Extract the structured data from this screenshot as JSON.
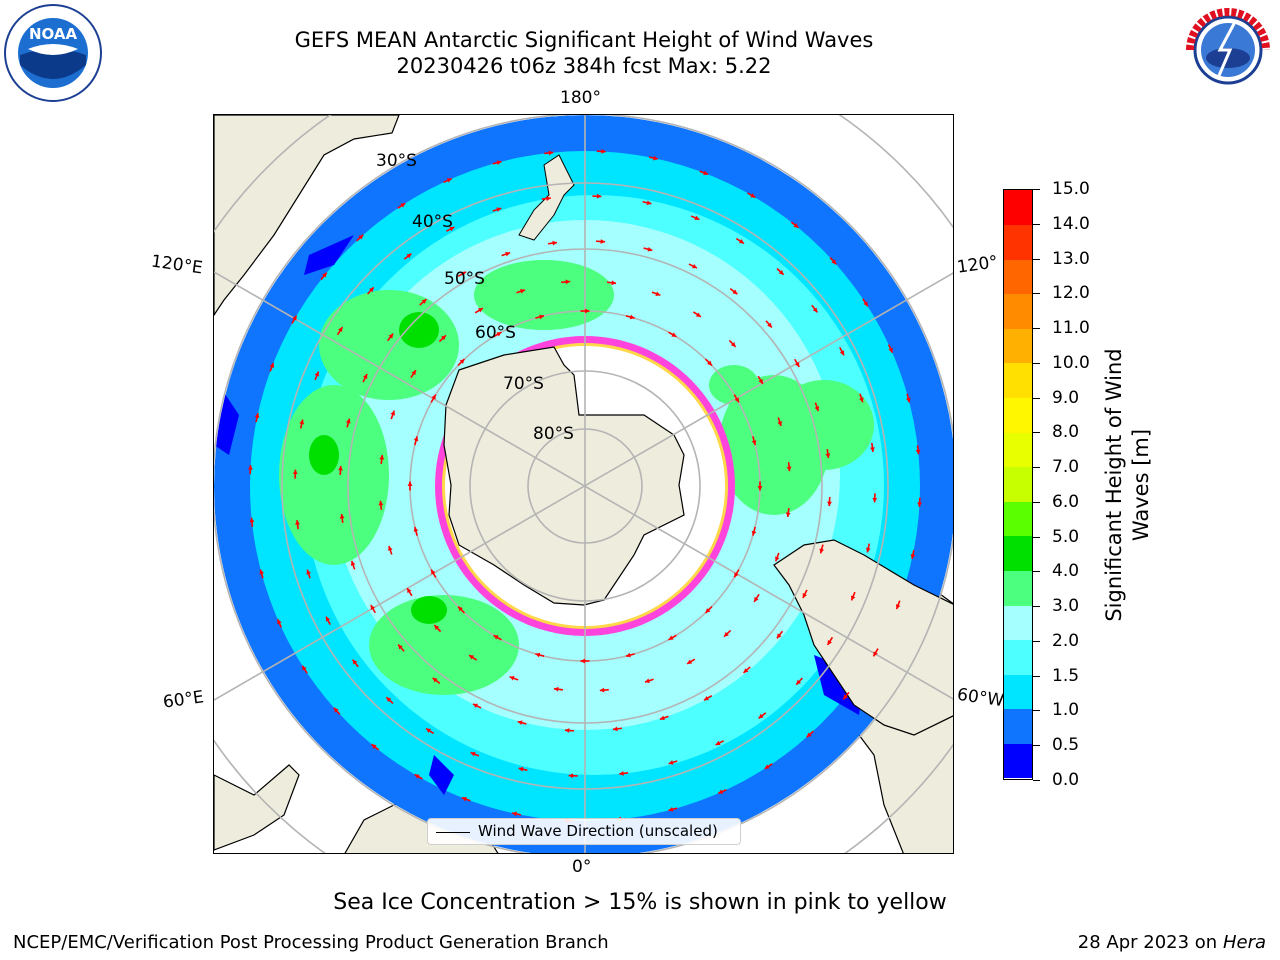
{
  "header": {
    "title_line1": "GEFS MEAN Antarctic Significant Height of Wind Waves",
    "title_line2": "20230426 t06z 384h fcst   Max: 5.22"
  },
  "logos": {
    "left": "NOAA",
    "left_ring_text": "NATIONAL OCEANIC AND ATMOSPHERIC ADMINISTRATION · U.S. DEPARTMENT OF COMMERCE",
    "right_ring_text": "NATIONAL WEATHER SERVICE"
  },
  "map": {
    "projection": "south-polar-stereographic",
    "lon_labels": {
      "top": "180°",
      "left_upper": "120°E",
      "right_upper": "120°",
      "left_lower": "60°E",
      "right_lower": "60°W",
      "bottom": "0°"
    },
    "lat_labels": [
      "30°S",
      "40°S",
      "50°S",
      "60°S",
      "70°S",
      "80°S"
    ],
    "legend": "Wind Wave Direction (unscaled)",
    "colors": {
      "land": "#eeecdc",
      "ice": "#ffffff",
      "grid": "#b4b4b4",
      "arrow": "#ff0000"
    }
  },
  "colorbar": {
    "label": "Significant Height of Wind Waves [m]",
    "ticks": [
      "0.0",
      "0.5",
      "1.0",
      "1.5",
      "2.0",
      "3.0",
      "4.0",
      "5.0",
      "6.0",
      "7.0",
      "8.0",
      "9.0",
      "10.0",
      "11.0",
      "12.0",
      "13.0",
      "14.0",
      "15.0"
    ],
    "colors": [
      "#0000ff",
      "#0f74fe",
      "#00e5ff",
      "#4dffff",
      "#a5ffff",
      "#4cff7e",
      "#00e000",
      "#5aff00",
      "#c8ff00",
      "#e8ff00",
      "#fff700",
      "#ffe000",
      "#ffb000",
      "#ff8c00",
      "#ff6600",
      "#ff3300",
      "#ff0000"
    ]
  },
  "footer": {
    "note": "Sea Ice Concentration > 15% is shown in pink to yellow",
    "left": "NCEP/EMC/Verification Post Processing Product Generation Branch",
    "right_date": "28 Apr 2023 on",
    "right_host": "Hera"
  }
}
